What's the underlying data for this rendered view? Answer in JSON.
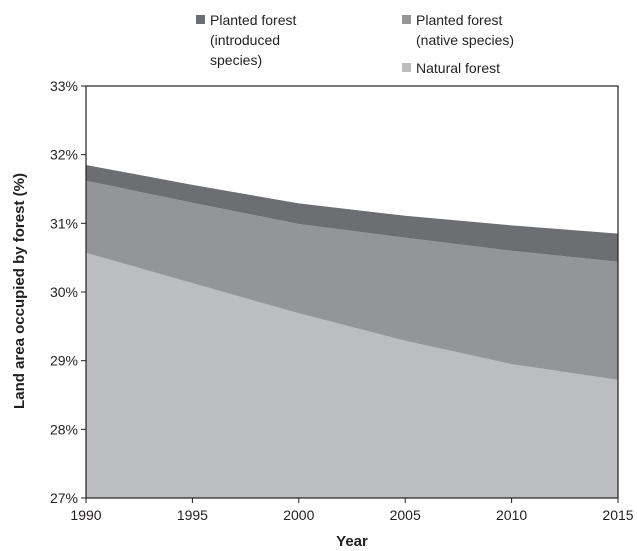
{
  "chart_data": {
    "type": "area",
    "stacked": true,
    "title": "",
    "xlabel": "Year",
    "ylabel": "Land area occupied by forest (%)",
    "xlim": [
      1990,
      2015
    ],
    "ylim": [
      27,
      33
    ],
    "x": [
      1990,
      1995,
      2000,
      2005,
      2010,
      2015
    ],
    "y_tick_labels": [
      "27%",
      "28%",
      "29%",
      "30%",
      "31%",
      "32%",
      "33%"
    ],
    "x_tick_labels": [
      "1990",
      "1995",
      "2000",
      "2005",
      "2010",
      "2015"
    ],
    "grid": false,
    "legend_position": "top",
    "series": [
      {
        "name_lines": [
          "Natural forest"
        ],
        "color": "#bcbdc0",
        "top_values": [
          30.57,
          30.13,
          29.69,
          29.29,
          28.95,
          28.72
        ]
      },
      {
        "name_lines": [
          "Planted forest",
          "(native species)"
        ],
        "color": "#939598",
        "top_values": [
          31.62,
          31.3,
          30.99,
          30.79,
          30.6,
          30.44
        ]
      },
      {
        "name_lines": [
          "Planted forest",
          "(introduced",
          "species)"
        ],
        "color": "#6d6e71",
        "top_values": [
          31.85,
          31.56,
          31.29,
          31.11,
          30.97,
          30.85
        ]
      }
    ]
  }
}
